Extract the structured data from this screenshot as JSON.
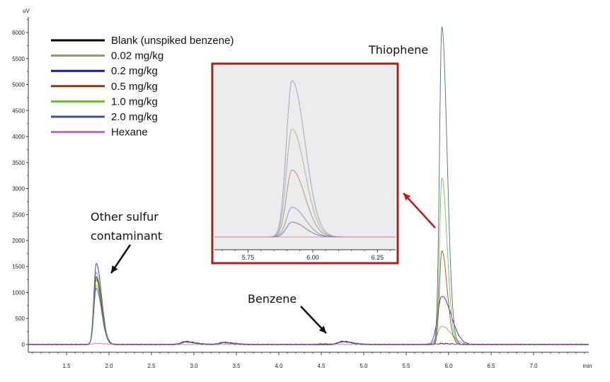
{
  "chart_data": {
    "type": "line",
    "title": "",
    "xlabel": "",
    "ylabel": "",
    "x_unit": "min",
    "y_unit": "uV",
    "xlim": [
      1.05,
      7.65
    ],
    "ylim": [
      -150,
      6300
    ],
    "x_ticks": [
      "1.5",
      "2.0",
      "2.5",
      "3.0",
      "3.5",
      "4.0",
      "4.5",
      "5.0",
      "5.5",
      "6.0",
      "6.5",
      "7.0"
    ],
    "y_ticks": [
      "0",
      "500",
      "1000",
      "1500",
      "2000",
      "2500",
      "3000",
      "3500",
      "4000",
      "4500",
      "5000",
      "5500",
      "6000"
    ],
    "legend_position": "top-left",
    "series": [
      {
        "name": "Blank (unspiked benzene)",
        "color": "#000000",
        "peaks": [
          {
            "x": 1.85,
            "height": 1300
          },
          {
            "x": 2.9,
            "height": 55
          },
          {
            "x": 3.35,
            "height": 40
          },
          {
            "x": 4.75,
            "height": 60
          },
          {
            "x": 5.92,
            "height": 20
          }
        ]
      },
      {
        "name": "0.02 mg/kg",
        "color": "#8aa05a",
        "peaks": [
          {
            "x": 1.85,
            "height": 1150
          },
          {
            "x": 2.9,
            "height": 50
          },
          {
            "x": 3.35,
            "height": 35
          },
          {
            "x": 4.75,
            "height": 55
          },
          {
            "x": 5.92,
            "height": 350
          }
        ]
      },
      {
        "name": "0.2 mg/kg",
        "color": "#1414d0",
        "peaks": [
          {
            "x": 1.85,
            "height": 1560
          },
          {
            "x": 2.9,
            "height": 55
          },
          {
            "x": 3.35,
            "height": 40
          },
          {
            "x": 4.75,
            "height": 60
          },
          {
            "x": 5.92,
            "height": 930
          }
        ]
      },
      {
        "name": "0.5 mg/kg",
        "color": "#8b3a12",
        "peaks": [
          {
            "x": 1.85,
            "height": 1250
          },
          {
            "x": 2.9,
            "height": 50
          },
          {
            "x": 3.35,
            "height": 35
          },
          {
            "x": 4.75,
            "height": 55
          },
          {
            "x": 5.92,
            "height": 1800
          }
        ]
      },
      {
        "name": "1.0 mg/kg",
        "color": "#66b83c",
        "peaks": [
          {
            "x": 1.85,
            "height": 1380
          },
          {
            "x": 2.9,
            "height": 50
          },
          {
            "x": 3.35,
            "height": 35
          },
          {
            "x": 4.75,
            "height": 55
          },
          {
            "x": 5.92,
            "height": 3200
          }
        ]
      },
      {
        "name": "2.0 mg/kg",
        "color": "#3d5a80",
        "peaks": [
          {
            "x": 1.85,
            "height": 1080
          },
          {
            "x": 2.9,
            "height": 50
          },
          {
            "x": 3.35,
            "height": 35
          },
          {
            "x": 4.75,
            "height": 50
          },
          {
            "x": 5.92,
            "height": 6100
          }
        ]
      },
      {
        "name": "Hexane",
        "color": "#d85ad2",
        "peaks": [
          {
            "x": 1.85,
            "height": 20
          },
          {
            "x": 4.5,
            "height": 20
          },
          {
            "x": 5.92,
            "height": 10
          }
        ]
      }
    ],
    "annotations": [
      {
        "text": "Thiophene",
        "lines": [
          "Thiophene"
        ]
      },
      {
        "text": "Other sulfur contaminant",
        "lines": [
          "Other sulfur",
          "contaminant"
        ]
      },
      {
        "text": "Benzene",
        "lines": [
          "Benzene"
        ]
      }
    ],
    "inset": {
      "xlim": [
        5.62,
        6.32
      ],
      "x_ticks": [
        "5.75",
        "6.00",
        "6.25"
      ],
      "frame_color": "#b01c1c",
      "background": "#ececec",
      "peaks": [
        {
          "x": 5.92,
          "height": 2100,
          "color": "#a0a0c8"
        },
        {
          "x": 5.92,
          "height": 1450,
          "color": "#a8b890"
        },
        {
          "x": 5.92,
          "height": 900,
          "color": "#b09080"
        },
        {
          "x": 5.92,
          "height": 400,
          "color": "#9090e0"
        },
        {
          "x": 5.92,
          "height": 200,
          "color": "#808080"
        }
      ]
    }
  }
}
